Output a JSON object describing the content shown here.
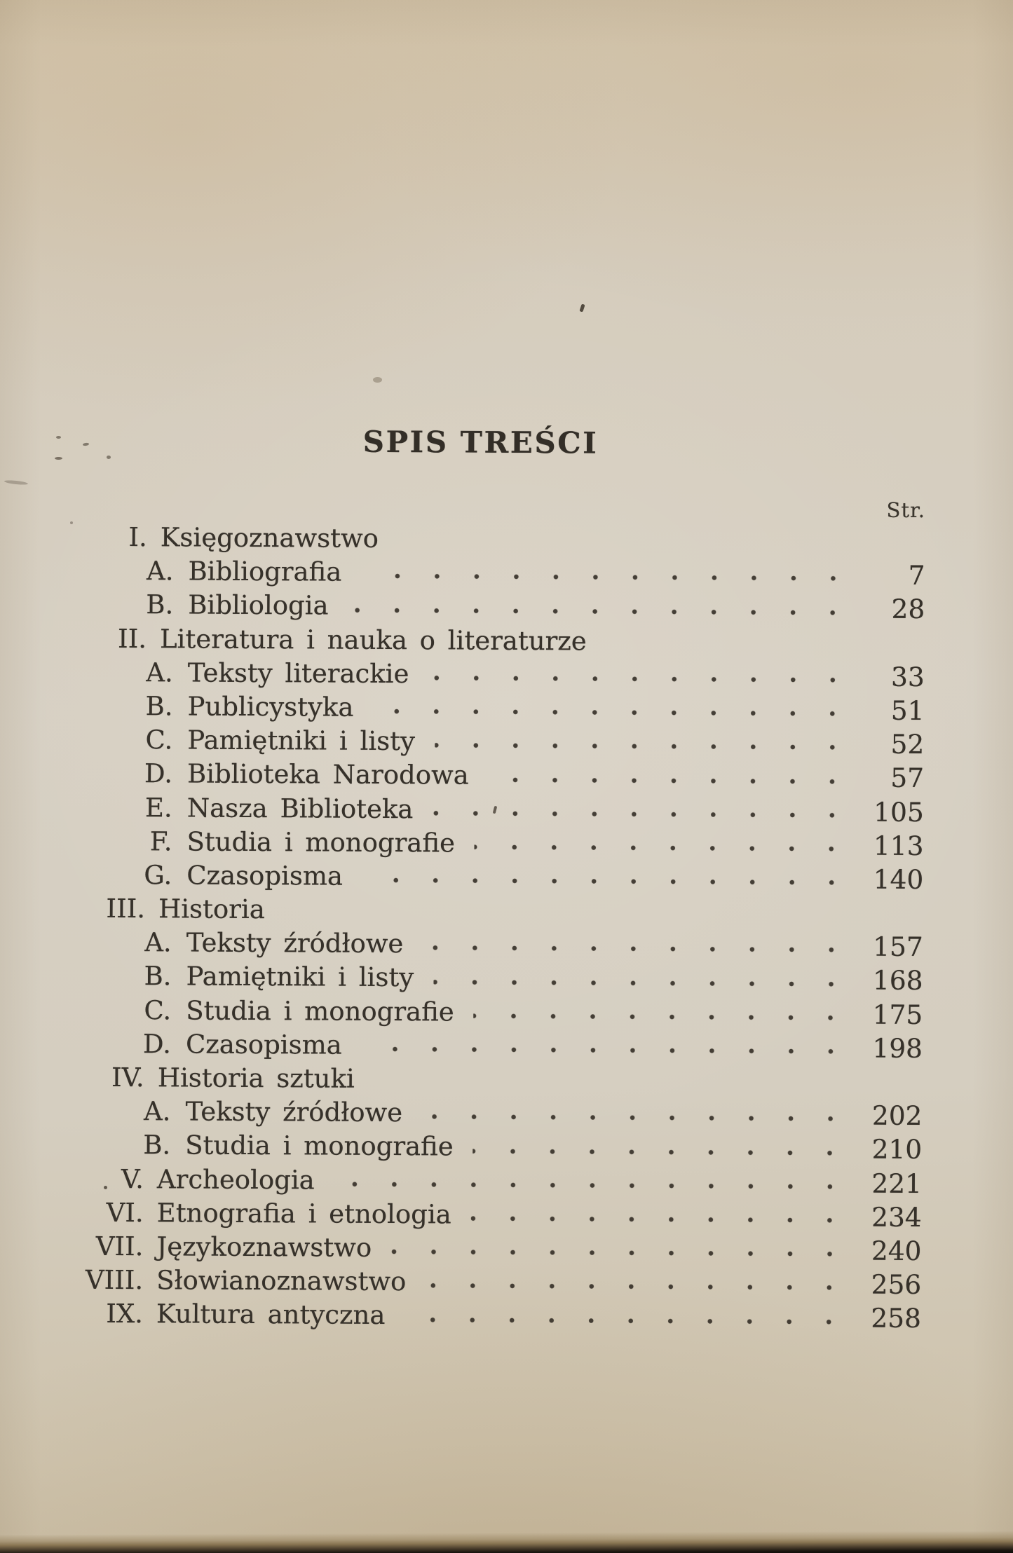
{
  "document": {
    "title": "SPIS TREŚCI",
    "page_column_header": "Str.",
    "entries": [
      {
        "numeral": "I.",
        "label": "Księgoznawstwo",
        "level": "section",
        "page": null
      },
      {
        "numeral": "A.",
        "label": "Bibliografia",
        "level": "item",
        "page": "7"
      },
      {
        "numeral": "B.",
        "label": "Bibliologia",
        "level": "item",
        "page": "28"
      },
      {
        "numeral": "II.",
        "label": "Literatura i nauka o literaturze",
        "level": "section",
        "page": null
      },
      {
        "numeral": "A.",
        "label": "Teksty literackie",
        "level": "item",
        "page": "33"
      },
      {
        "numeral": "B.",
        "label": "Publicystyka",
        "level": "item",
        "page": "51"
      },
      {
        "numeral": "C.",
        "label": "Pamiętniki i listy",
        "level": "item",
        "page": "52"
      },
      {
        "numeral": "D.",
        "label": "Biblioteka Narodowa",
        "level": "item",
        "page": "57"
      },
      {
        "numeral": "E.",
        "label": "Nasza Biblioteka",
        "level": "item",
        "page": "105"
      },
      {
        "numeral": "F.",
        "label": "Studia i monografie",
        "level": "item",
        "page": "113"
      },
      {
        "numeral": "G.",
        "label": "Czasopisma",
        "level": "item",
        "page": "140"
      },
      {
        "numeral": "III.",
        "label": "Historia",
        "level": "section",
        "page": null
      },
      {
        "numeral": "A.",
        "label": "Teksty źródłowe",
        "level": "item",
        "page": "157"
      },
      {
        "numeral": "B.",
        "label": "Pamiętniki i listy",
        "level": "item",
        "page": "168"
      },
      {
        "numeral": "C.",
        "label": "Studia i monografie",
        "level": "item",
        "page": "175"
      },
      {
        "numeral": "D.",
        "label": "Czasopisma",
        "level": "item",
        "page": "198"
      },
      {
        "numeral": "IV.",
        "label": "Historia sztuki",
        "level": "section",
        "page": null
      },
      {
        "numeral": "A.",
        "label": "Teksty źródłowe",
        "level": "item",
        "page": "202"
      },
      {
        "numeral": "B.",
        "label": "Studia i monografie",
        "level": "item",
        "page": "210"
      },
      {
        "numeral": "V.",
        "label": "Archeologia",
        "level": "section",
        "page": "221"
      },
      {
        "numeral": "VI.",
        "label": "Etnografia i etnologia",
        "level": "section",
        "page": "234"
      },
      {
        "numeral": "VII.",
        "label": "Językoznawstwo",
        "level": "section",
        "page": "240"
      },
      {
        "numeral": "VIII.",
        "label": "Słowianoznawstwo",
        "level": "section",
        "page": "256"
      },
      {
        "numeral": "IX.",
        "label": "Kultura antyczna",
        "level": "section",
        "page": "258"
      }
    ]
  },
  "colors": {
    "paper": "#d6cec0",
    "paper_top": "#d2c4ab",
    "ink": "#36312a",
    "bottom_edge": "#0b0908"
  }
}
